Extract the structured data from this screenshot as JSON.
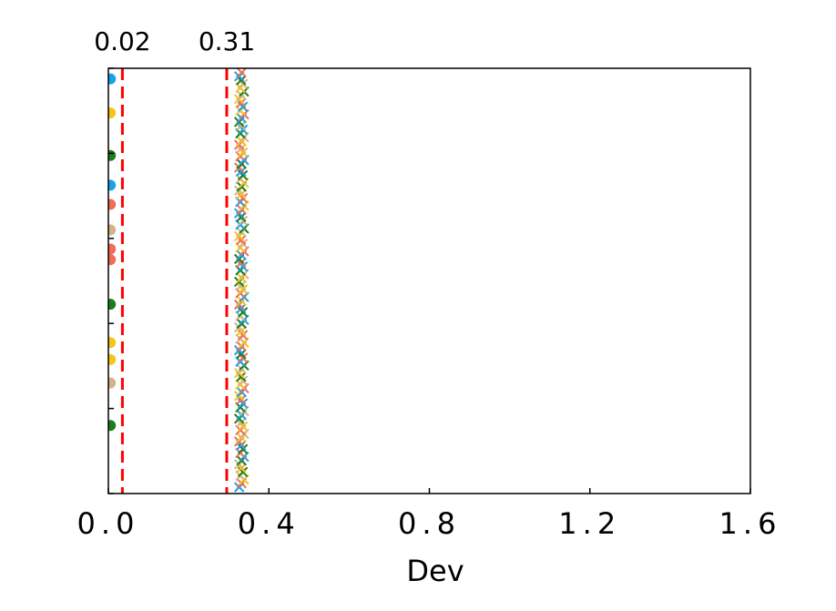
{
  "chart_data": {
    "type": "scatter",
    "title": "",
    "xlabel": "Dev",
    "ylabel": "",
    "xlim": [
      0.0,
      1.6
    ],
    "x_ticks": [
      0.0,
      0.4,
      0.8,
      1.2,
      1.6
    ],
    "x_tick_labels": [
      "0.0",
      "0.4",
      "0.8",
      "1.2",
      "1.6"
    ],
    "y_tick_count": 6,
    "grid": false,
    "legend": "none",
    "reference_lines": [
      {
        "x": 0.035,
        "label": "0.02",
        "color": "#ff0000",
        "style": "dashed"
      },
      {
        "x": 0.295,
        "label": "0.31",
        "color": "#ff0000",
        "style": "dashed"
      }
    ],
    "series": [
      {
        "marker": "circle",
        "points": [
          {
            "x": 0.005,
            "y": 0.975,
            "color": "#1aa3e8"
          },
          {
            "x": 0.005,
            "y": 0.895,
            "color": "#f5c518"
          },
          {
            "x": 0.005,
            "y": 0.795,
            "color": "#1e7d1e"
          },
          {
            "x": 0.005,
            "y": 0.725,
            "color": "#1aa3e8"
          },
          {
            "x": 0.005,
            "y": 0.68,
            "color": "#f26b5b"
          },
          {
            "x": 0.005,
            "y": 0.62,
            "color": "#d2b48c"
          },
          {
            "x": 0.005,
            "y": 0.575,
            "color": "#f26b5b"
          },
          {
            "x": 0.005,
            "y": 0.55,
            "color": "#f26b5b"
          },
          {
            "x": 0.005,
            "y": 0.445,
            "color": "#1e7d1e"
          },
          {
            "x": 0.005,
            "y": 0.355,
            "color": "#f5c518"
          },
          {
            "x": 0.005,
            "y": 0.315,
            "color": "#f5c518"
          },
          {
            "x": 0.005,
            "y": 0.26,
            "color": "#d2b48c"
          },
          {
            "x": 0.005,
            "y": 0.16,
            "color": "#1e7d1e"
          }
        ]
      },
      {
        "marker": "x",
        "x_center": 0.33,
        "x_jitter": [
          0.326,
          0.332,
          0.338,
          0.329,
          0.335,
          0.331
        ],
        "colors": [
          "#1aa3e8",
          "#f5c518",
          "#1e7d1e",
          "#f26b5b",
          "#d2b48c"
        ],
        "count": 110,
        "y_range": [
          0.0,
          1.0
        ]
      }
    ]
  }
}
